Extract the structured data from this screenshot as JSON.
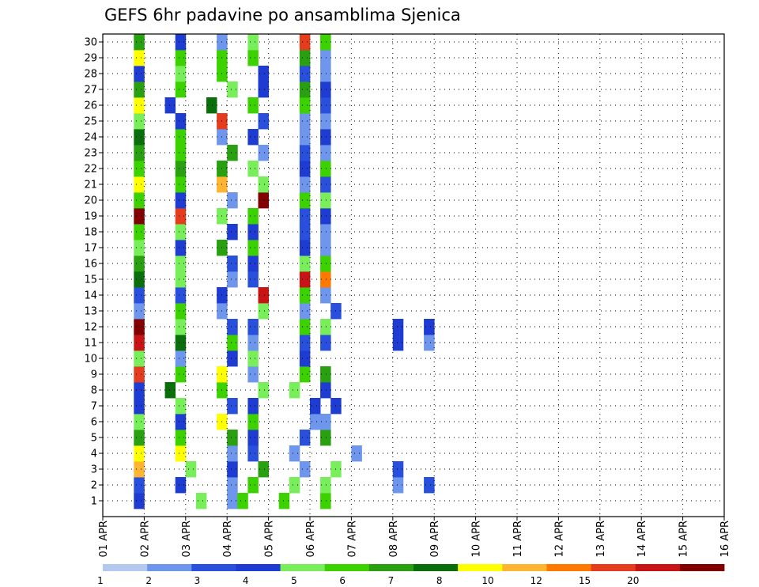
{
  "chart_data": {
    "type": "heatmap",
    "title": "GEFS 6hr padavine po ansamblima Sjenica",
    "xlabel": "",
    "ylabel": "",
    "x_tick_labels": [
      "01 APR",
      "02 APR",
      "03 APR",
      "04 APR",
      "05 APR",
      "06 APR",
      "07 APR",
      "08 APR",
      "09 APR",
      "10 APR",
      "11 APR",
      "12 APR",
      "13 APR",
      "14 APR",
      "15 APR",
      "16 APR"
    ],
    "y_tick_labels": [
      "1",
      "2",
      "3",
      "4",
      "5",
      "6",
      "7",
      "8",
      "9",
      "10",
      "11",
      "12",
      "13",
      "14",
      "15",
      "16",
      "17",
      "18",
      "19",
      "20",
      "21",
      "22",
      "23",
      "24",
      "25",
      "26",
      "27",
      "28",
      "29",
      "30"
    ],
    "grid": true,
    "legend": {
      "placement": "bottom",
      "levels": [
        "1",
        "2",
        "3",
        "4",
        "5",
        "6",
        "7",
        "8",
        "10",
        "12",
        "15",
        "20"
      ],
      "colors": [
        "#b4c8f0",
        "#6e96ec",
        "#2850dc",
        "#1e3cd2",
        "#78ee5a",
        "#3cd200",
        "#28a010",
        "#0a6e0a",
        "#ffff00",
        "#ffb432",
        "#ff7800",
        "#e63c1e",
        "#c81414",
        "#820000"
      ]
    },
    "cells": [
      [
        1,
        0,
        3,
        3
      ],
      [
        1,
        1,
        5,
        4
      ],
      [
        1,
        2,
        4,
        1
      ],
      [
        1,
        3,
        1,
        5
      ],
      [
        1,
        4,
        1,
        5
      ],
      [
        1,
        5,
        1,
        5
      ],
      [
        2,
        0,
        3,
        2
      ],
      [
        2,
        1,
        3,
        3
      ],
      [
        2,
        2,
        4,
        1
      ],
      [
        2,
        3,
        2,
        5
      ],
      [
        2,
        4,
        2,
        4
      ],
      [
        2,
        5,
        1,
        4
      ],
      [
        2,
        6,
        4,
        1
      ],
      [
        2,
        7,
        3,
        2
      ],
      [
        3,
        0,
        3,
        9
      ],
      [
        3,
        1,
        4,
        4
      ],
      [
        3,
        2,
        4,
        3
      ],
      [
        3,
        3,
        3,
        6
      ],
      [
        3,
        4,
        3,
        1
      ],
      [
        3,
        5,
        2,
        4
      ],
      [
        3,
        6,
        4,
        2
      ],
      [
        4,
        0,
        3,
        8
      ],
      [
        4,
        1,
        3,
        8
      ],
      [
        4,
        2,
        4,
        1
      ],
      [
        4,
        3,
        2,
        2
      ],
      [
        4,
        4,
        2,
        1
      ],
      [
        4,
        5,
        4,
        1
      ],
      [
        5,
        0,
        3,
        6
      ],
      [
        5,
        1,
        3,
        5
      ],
      [
        5,
        2,
        4,
        6
      ],
      [
        5,
        3,
        2,
        3
      ],
      [
        5,
        4,
        3,
        2
      ],
      [
        5,
        5,
        1,
        6
      ],
      [
        6,
        0,
        3,
        4
      ],
      [
        6,
        1,
        3,
        3
      ],
      [
        6,
        2,
        3,
        8
      ],
      [
        6,
        3,
        2,
        5
      ],
      [
        6,
        4,
        4,
        1
      ],
      [
        6,
        5,
        1,
        1
      ],
      [
        7,
        0,
        3,
        3
      ],
      [
        7,
        1,
        3,
        4
      ],
      [
        7,
        2,
        4,
        2
      ],
      [
        7,
        3,
        2,
        3
      ],
      [
        7,
        4,
        4,
        3
      ],
      [
        7,
        5,
        2,
        3
      ],
      [
        8,
        0,
        3,
        3
      ],
      [
        8,
        1,
        2,
        7
      ],
      [
        8,
        2,
        3,
        5
      ],
      [
        8,
        3,
        3,
        4
      ],
      [
        8,
        4,
        2,
        4
      ],
      [
        8,
        5,
        1,
        3
      ],
      [
        9,
        0,
        3,
        11
      ],
      [
        9,
        1,
        3,
        5
      ],
      [
        9,
        2,
        3,
        8
      ],
      [
        9,
        3,
        2,
        1
      ],
      [
        9,
        4,
        3,
        5
      ],
      [
        9,
        5,
        1,
        6
      ],
      [
        10,
        0,
        3,
        4
      ],
      [
        10,
        1,
        3,
        1
      ],
      [
        10,
        2,
        4,
        3
      ],
      [
        10,
        3,
        2,
        4
      ],
      [
        10,
        4,
        3,
        3
      ],
      [
        11,
        0,
        3,
        12
      ],
      [
        11,
        1,
        3,
        7
      ],
      [
        11,
        2,
        4,
        5
      ],
      [
        11,
        3,
        2,
        1
      ],
      [
        11,
        4,
        3,
        2
      ],
      [
        11,
        5,
        1,
        2
      ],
      [
        11,
        6,
        4,
        3
      ],
      [
        11,
        7,
        3,
        1
      ],
      [
        12,
        0,
        3,
        13
      ],
      [
        12,
        1,
        3,
        4
      ],
      [
        12,
        2,
        4,
        2
      ],
      [
        12,
        3,
        2,
        2
      ],
      [
        12,
        4,
        3,
        5
      ],
      [
        12,
        5,
        1,
        4
      ],
      [
        12,
        6,
        4,
        3
      ],
      [
        12,
        7,
        3,
        3
      ],
      [
        13,
        0,
        3,
        1
      ],
      [
        13,
        1,
        3,
        5
      ],
      [
        13,
        2,
        3,
        1
      ],
      [
        13,
        3,
        3,
        4
      ],
      [
        13,
        4,
        3,
        1
      ],
      [
        13,
        5,
        2,
        2
      ],
      [
        14,
        0,
        3,
        2
      ],
      [
        14,
        1,
        3,
        2
      ],
      [
        14,
        2,
        3,
        3
      ],
      [
        14,
        3,
        3,
        12
      ],
      [
        14,
        4,
        3,
        5
      ],
      [
        14,
        5,
        1,
        1
      ],
      [
        15,
        0,
        3,
        7
      ],
      [
        15,
        1,
        3,
        4
      ],
      [
        15,
        2,
        4,
        1
      ],
      [
        15,
        3,
        2,
        2
      ],
      [
        15,
        4,
        3,
        12
      ],
      [
        15,
        5,
        1,
        10
      ],
      [
        16,
        0,
        3,
        6
      ],
      [
        16,
        1,
        3,
        4
      ],
      [
        16,
        2,
        4,
        2
      ],
      [
        16,
        3,
        2,
        3
      ],
      [
        16,
        4,
        3,
        4
      ],
      [
        16,
        5,
        1,
        5
      ],
      [
        17,
        0,
        3,
        4
      ],
      [
        17,
        1,
        3,
        3
      ],
      [
        17,
        2,
        3,
        6
      ],
      [
        17,
        3,
        2,
        5
      ],
      [
        17,
        4,
        3,
        3
      ],
      [
        17,
        5,
        1,
        1
      ],
      [
        18,
        0,
        3,
        5
      ],
      [
        18,
        1,
        3,
        4
      ],
      [
        18,
        2,
        4,
        3
      ],
      [
        18,
        3,
        2,
        3
      ],
      [
        18,
        4,
        3,
        2
      ],
      [
        18,
        5,
        1,
        1
      ],
      [
        19,
        0,
        3,
        13
      ],
      [
        19,
        1,
        3,
        11
      ],
      [
        19,
        2,
        3,
        4
      ],
      [
        19,
        3,
        2,
        5
      ],
      [
        19,
        4,
        3,
        2
      ],
      [
        19,
        5,
        1,
        3
      ],
      [
        20,
        0,
        3,
        5
      ],
      [
        20,
        1,
        3,
        3
      ],
      [
        20,
        2,
        4,
        1
      ],
      [
        20,
        3,
        3,
        13
      ],
      [
        20,
        4,
        3,
        5
      ],
      [
        20,
        5,
        1,
        4
      ],
      [
        21,
        0,
        3,
        8
      ],
      [
        21,
        1,
        3,
        5
      ],
      [
        21,
        2,
        3,
        9
      ],
      [
        21,
        3,
        3,
        4
      ],
      [
        21,
        4,
        3,
        1
      ],
      [
        21,
        5,
        1,
        2
      ],
      [
        22,
        0,
        3,
        5
      ],
      [
        22,
        1,
        3,
        6
      ],
      [
        22,
        2,
        3,
        6
      ],
      [
        22,
        3,
        2,
        4
      ],
      [
        22,
        4,
        3,
        3
      ],
      [
        22,
        5,
        1,
        5
      ],
      [
        23,
        0,
        3,
        6
      ],
      [
        23,
        1,
        3,
        5
      ],
      [
        23,
        2,
        4,
        6
      ],
      [
        23,
        3,
        3,
        1
      ],
      [
        23,
        4,
        3,
        2
      ],
      [
        23,
        5,
        1,
        1
      ],
      [
        24,
        0,
        3,
        7
      ],
      [
        24,
        1,
        3,
        5
      ],
      [
        24,
        2,
        3,
        1
      ],
      [
        24,
        3,
        2,
        3
      ],
      [
        24,
        4,
        3,
        1
      ],
      [
        24,
        5,
        1,
        3
      ],
      [
        25,
        0,
        3,
        4
      ],
      [
        25,
        1,
        3,
        3
      ],
      [
        25,
        2,
        3,
        11
      ],
      [
        25,
        3,
        3,
        2
      ],
      [
        25,
        4,
        3,
        1
      ],
      [
        25,
        5,
        1,
        1
      ],
      [
        26,
        0,
        3,
        8
      ],
      [
        26,
        1,
        2,
        3
      ],
      [
        26,
        2,
        2,
        7
      ],
      [
        26,
        3,
        2,
        5
      ],
      [
        26,
        4,
        3,
        5
      ],
      [
        26,
        5,
        1,
        2
      ],
      [
        27,
        0,
        3,
        6
      ],
      [
        27,
        1,
        3,
        5
      ],
      [
        27,
        2,
        4,
        4
      ],
      [
        27,
        3,
        3,
        3
      ],
      [
        27,
        4,
        3,
        6
      ],
      [
        27,
        5,
        1,
        3
      ],
      [
        28,
        0,
        3,
        3
      ],
      [
        28,
        1,
        3,
        4
      ],
      [
        28,
        2,
        3,
        5
      ],
      [
        28,
        3,
        3,
        3
      ],
      [
        28,
        4,
        3,
        2
      ],
      [
        28,
        5,
        1,
        1
      ],
      [
        29,
        0,
        3,
        8
      ],
      [
        29,
        1,
        3,
        5
      ],
      [
        29,
        2,
        3,
        5
      ],
      [
        29,
        3,
        2,
        5
      ],
      [
        29,
        4,
        3,
        6
      ],
      [
        29,
        5,
        1,
        1
      ],
      [
        30,
        0,
        3,
        6
      ],
      [
        30,
        1,
        3,
        3
      ],
      [
        30,
        2,
        3,
        1
      ],
      [
        30,
        3,
        2,
        4
      ],
      [
        30,
        4,
        3,
        11
      ],
      [
        30,
        5,
        1,
        5
      ]
    ]
  }
}
